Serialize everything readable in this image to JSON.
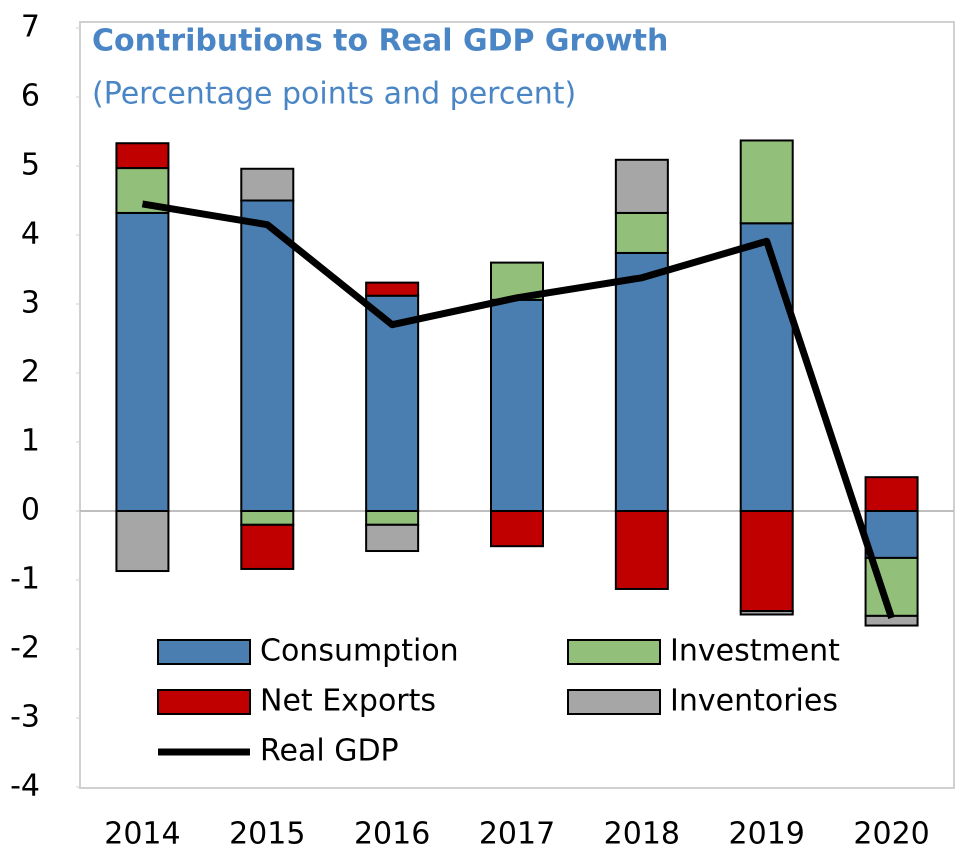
{
  "chart_data": {
    "type": "bar",
    "stacked": true,
    "title": "Contributions to Real GDP Growth",
    "subtitle": "(Percentage points and percent)",
    "categories": [
      "2014",
      "2015",
      "2016",
      "2017",
      "2018",
      "2019",
      "2020"
    ],
    "series": [
      {
        "name": "Consumption",
        "color": "#4a7eb0",
        "values": [
          4.32,
          4.5,
          3.12,
          3.06,
          3.74,
          4.17,
          -0.68
        ]
      },
      {
        "name": "Investment",
        "color": "#92c07a",
        "values": [
          0.65,
          -0.2,
          -0.2,
          0.54,
          0.58,
          1.2,
          -0.84
        ]
      },
      {
        "name": "Net Exports",
        "color": "#c00000",
        "values": [
          0.36,
          -0.64,
          0.19,
          -0.51,
          -1.13,
          -1.45,
          0.49
        ]
      },
      {
        "name": "Inventories",
        "color": "#a6a6a6",
        "values": [
          -0.87,
          0.46,
          -0.38,
          0,
          0.77,
          -0.05,
          -0.14
        ]
      },
      {
        "name": "Real GDP",
        "color": "#000000",
        "type": "line",
        "values": [
          4.45,
          4.15,
          2.7,
          3.09,
          3.38,
          3.91,
          -1.55
        ]
      }
    ],
    "ylim": [
      -4,
      7
    ],
    "yticks": [
      -4,
      -3,
      -2,
      -1,
      0,
      1,
      2,
      3,
      4,
      5,
      6,
      7
    ]
  }
}
